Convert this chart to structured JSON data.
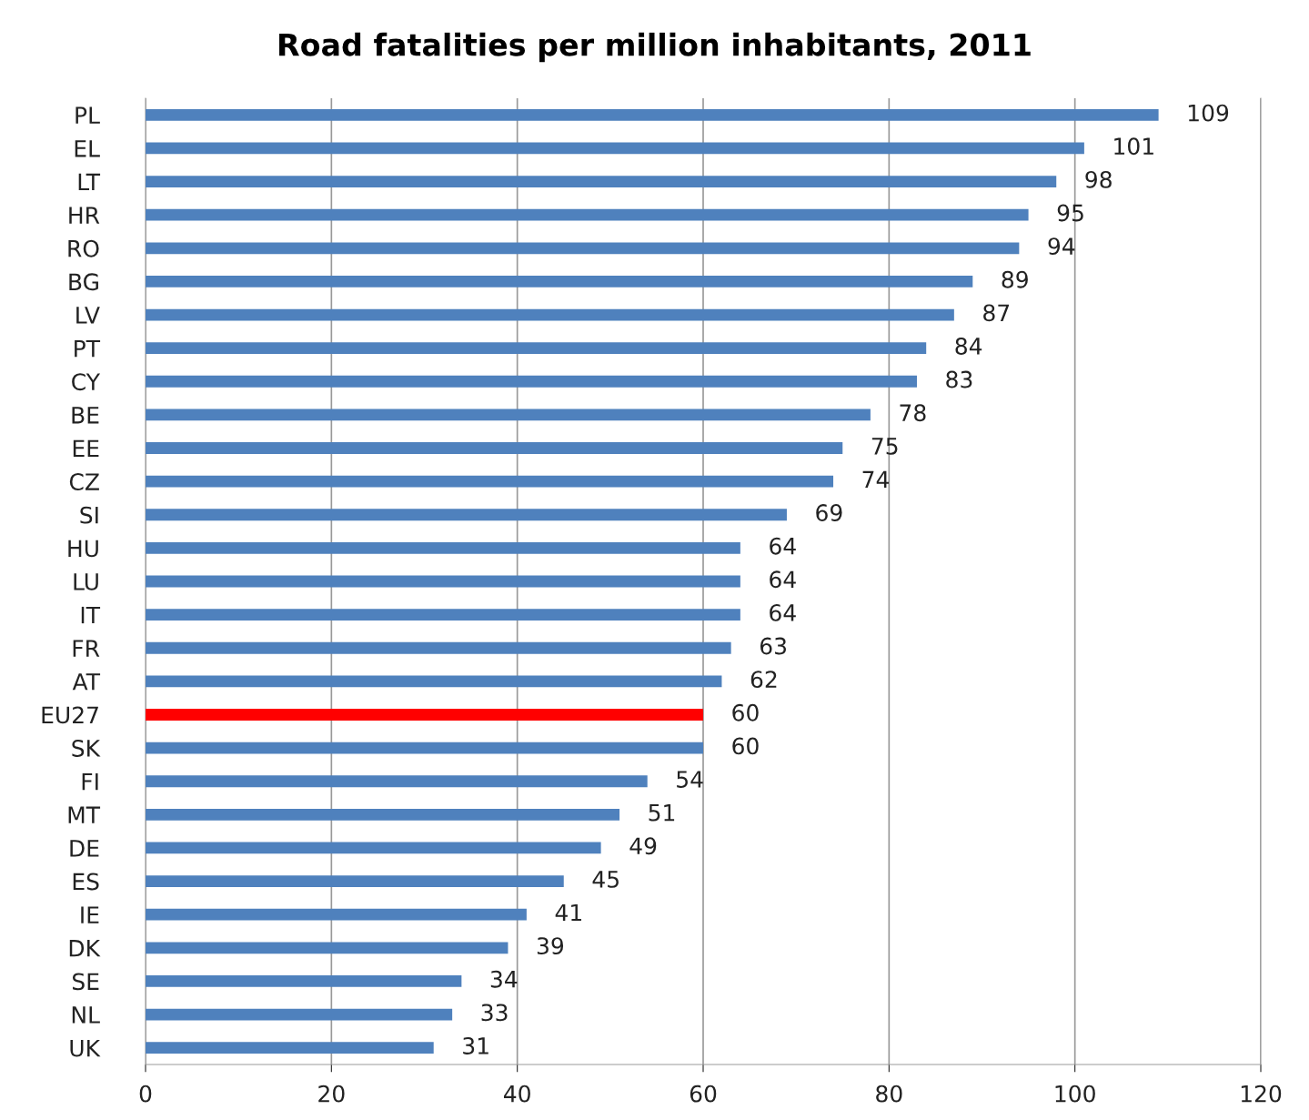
{
  "chart_data": {
    "type": "bar",
    "orientation": "horizontal",
    "title": "Road fatalities per million inhabitants, 2011",
    "categories": [
      "PL",
      "EL",
      "LT",
      "HR",
      "RO",
      "BG",
      "LV",
      "PT",
      "CY",
      "BE",
      "EE",
      "CZ",
      "SI",
      "HU",
      "LU",
      "IT",
      "FR",
      "AT",
      "EU27",
      "SK",
      "FI",
      "MT",
      "DE",
      "ES",
      "IE",
      "DK",
      "SE",
      "NL",
      "UK"
    ],
    "values": [
      109,
      101,
      98,
      95,
      94,
      89,
      87,
      84,
      83,
      78,
      75,
      74,
      69,
      64,
      64,
      64,
      63,
      62,
      60,
      60,
      54,
      51,
      49,
      45,
      41,
      39,
      34,
      33,
      31
    ],
    "colors": [
      "#4f81bd",
      "#4f81bd",
      "#4f81bd",
      "#4f81bd",
      "#4f81bd",
      "#4f81bd",
      "#4f81bd",
      "#4f81bd",
      "#4f81bd",
      "#4f81bd",
      "#4f81bd",
      "#4f81bd",
      "#4f81bd",
      "#4f81bd",
      "#4f81bd",
      "#4f81bd",
      "#4f81bd",
      "#4f81bd",
      "#ff0000",
      "#4f81bd",
      "#4f81bd",
      "#4f81bd",
      "#4f81bd",
      "#4f81bd",
      "#4f81bd",
      "#4f81bd",
      "#4f81bd",
      "#4f81bd",
      "#4f81bd"
    ],
    "xlim": [
      0,
      120
    ],
    "xticks": [
      0,
      20,
      40,
      60,
      80,
      100,
      120
    ],
    "grid": "x",
    "data_labels": true
  }
}
